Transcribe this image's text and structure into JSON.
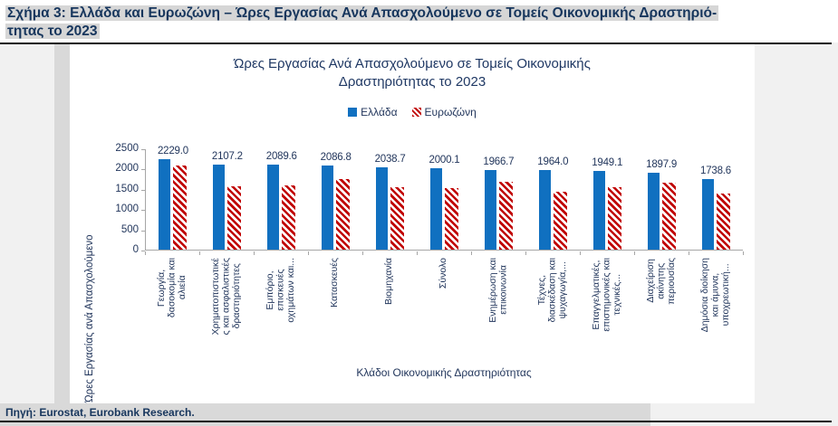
{
  "header": {
    "caption_line1": "Σχήμα 3: Ελλάδα και Ευρωζώνη – Ώρες Εργασίας Ανά Απασχολούμενο σε Τομείς Οικονομικής Δραστηριό-",
    "caption_line2": "τητας το 2023"
  },
  "footer": {
    "source": "Πηγή: Eurostat, Eurobank Research."
  },
  "chart_data": {
    "type": "bar",
    "title": "Ώρες Εργασίας Ανά Απασχολούμενο σε Τομείς Οικονομικής Δραστηριότητας το 2023",
    "title_lines": [
      "Ώρες Εργασίας Ανά Απασχολούμενο σε Τομείς Οικονομικής",
      "Δραστηριότητας το 2023"
    ],
    "xlabel": "Κλάδοι Οικονομικής Δραστηριότητας",
    "ylabel": "Ώρες Εργασίας ανά Απασχολούμενο",
    "ylim": [
      0,
      2500
    ],
    "yticks": [
      0,
      500,
      1000,
      1500,
      2000,
      2500
    ],
    "grid": false,
    "legend_position": "top-center",
    "categories": [
      "Γεωργία,\nδασοκομία και\nαλιεία",
      "Χρηματοπιστωτικέ\nς και ασφαλιστικές\nδραστηριότητες",
      "Εμπόριο,\nεπισκευές\nοχημάτων και...",
      "Κατασκευές",
      "Βιομηχανία",
      "Σύνολο",
      "Ενημέρωση και\nεπικοινωνία",
      "Τέχνες,\nδιασκέδαση και\nψυχαγωγία,...",
      "Επαγγελματικές,\nεπιστημονικές και\nτεχνικές...",
      "Διαχείριση\nακίνητης\nπεριουσίας",
      "Δημόσια διοίκηση\nκαι άμυνα,\nυποχρεωτική..."
    ],
    "series": [
      {
        "name": "Ελλάδα",
        "color": "#1070C0",
        "fill": "solid",
        "data_labels": true,
        "values": [
          2229.0,
          2107.2,
          2089.6,
          2086.8,
          2038.7,
          2000.1,
          1966.7,
          1964.0,
          1949.1,
          1897.9,
          1738.6
        ]
      },
      {
        "name": "Ευρωζώνη",
        "color": "#C00000",
        "fill": "diagonal-hatch",
        "data_labels": false,
        "values_estimated_from_bar_heights": true,
        "values": [
          2080,
          1565,
          1585,
          1750,
          1545,
          1520,
          1670,
          1430,
          1550,
          1650,
          1390
        ]
      }
    ]
  },
  "colors": {
    "accent_blue": "#1070C0",
    "accent_red": "#C00000",
    "heading_text": "#17365D",
    "chart_text": "#22365C",
    "highlight_gray": "#d9d9d9",
    "page_gray": "#f1f1f1",
    "axis_gray": "#a6a6a6"
  }
}
